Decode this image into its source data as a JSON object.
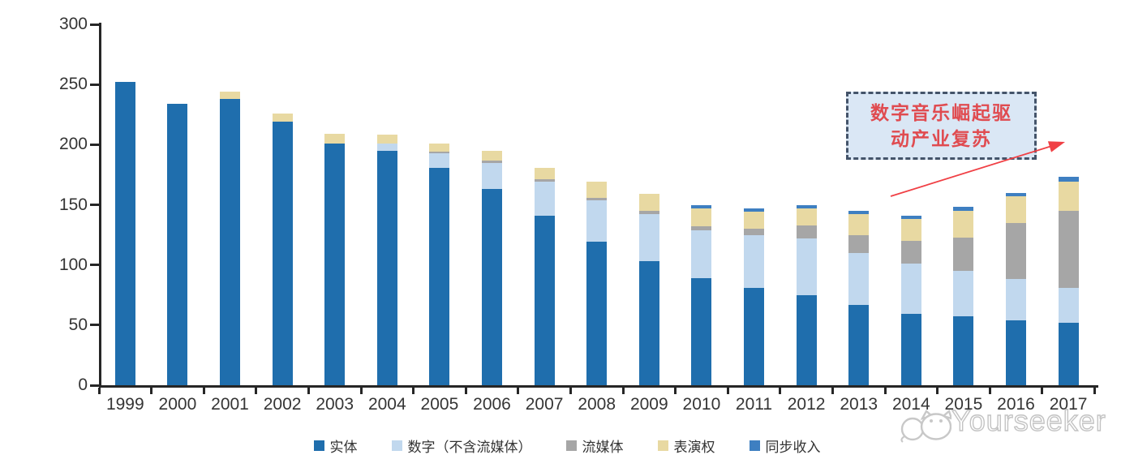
{
  "chart_data": {
    "type": "bar",
    "stacked": true,
    "title": "",
    "xlabel": "",
    "ylabel": "",
    "ylim": [
      0,
      300
    ],
    "yticks": [
      0,
      50,
      100,
      150,
      200,
      250,
      300
    ],
    "grid": false,
    "legend_position": "bottom",
    "categories": [
      "1999",
      "2000",
      "2001",
      "2002",
      "2003",
      "2004",
      "2005",
      "2006",
      "2007",
      "2008",
      "2009",
      "2010",
      "2011",
      "2012",
      "2013",
      "2014",
      "2015",
      "2016",
      "2017"
    ],
    "series": [
      {
        "name": "实体",
        "color": "#1F6EAD",
        "values": [
          252,
          234,
          238,
          219,
          201,
          195,
          181,
          163,
          141,
          119,
          103,
          89,
          81,
          75,
          67,
          59,
          57,
          54,
          52
        ]
      },
      {
        "name": "数字（不含流媒体）",
        "color": "#C1D8EE",
        "values": [
          0,
          0,
          0,
          0,
          0,
          6,
          12,
          22,
          28,
          35,
          39,
          40,
          44,
          47,
          43,
          42,
          38,
          34,
          29
        ]
      },
      {
        "name": "流媒体",
        "color": "#A6A6A6",
        "values": [
          0,
          0,
          0,
          0,
          0,
          0,
          1,
          2,
          2,
          2,
          3,
          3,
          5,
          11,
          15,
          19,
          28,
          47,
          64
        ]
      },
      {
        "name": "表演权",
        "color": "#E8D9A2",
        "values": [
          0,
          0,
          6,
          7,
          8,
          7,
          7,
          8,
          10,
          13,
          14,
          15,
          14,
          14,
          17,
          18,
          22,
          22,
          24
        ]
      },
      {
        "name": "同步收入",
        "color": "#3E7FC1",
        "values": [
          0,
          0,
          0,
          0,
          0,
          0,
          0,
          0,
          0,
          0,
          0,
          3,
          3,
          3,
          3,
          3,
          3,
          3,
          4
        ]
      }
    ]
  },
  "annotation": {
    "line1": "数字音乐崛起驱",
    "line2": "动产业复苏",
    "text_color": "#E04B50",
    "box_fill": "#DAE7F5",
    "border_color": "#44546A",
    "arrow_color": "#F04045"
  },
  "watermark": {
    "text": "Yourseeker",
    "color": "#c3c3c3"
  }
}
